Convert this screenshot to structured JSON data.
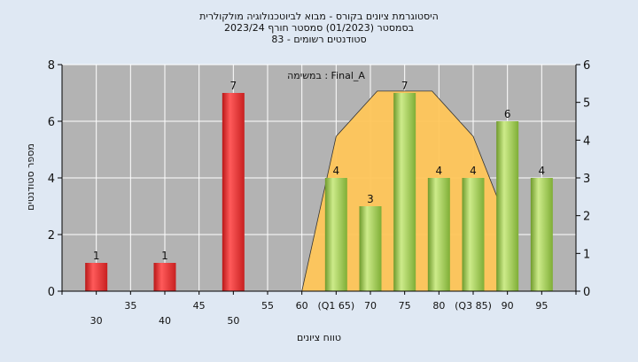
{
  "chart_data": {
    "type": "bar",
    "title_lines": [
      "היסטוגרמת ציונים בקורס - מבוא לביוטכנולוגיה מולקולרית",
      "בסמסטר  (01/2023)  סמסטר חורף 2023/24",
      "סטודנטים רשומים - 83"
    ],
    "subtitle": "במשימה : Final_A",
    "xlabel": "טווח ציונים",
    "ylabel": "מספר סטודנטים",
    "xlim": [
      25,
      100
    ],
    "ylim_left": [
      0,
      8
    ],
    "ylim_right": [
      0,
      6
    ],
    "yticks_left": [
      "0",
      "2",
      "4",
      "6",
      "8"
    ],
    "yticks_right": [
      "0",
      "1",
      "2",
      "3",
      "4",
      "5",
      "6"
    ],
    "xticks_top": [
      {
        "x": 35,
        "label": "35"
      },
      {
        "x": 45,
        "label": "45"
      },
      {
        "x": 55,
        "label": "55"
      },
      {
        "x": 60,
        "label": "60"
      },
      {
        "x": 65,
        "label": "(Q1 65)"
      },
      {
        "x": 70,
        "label": "70"
      },
      {
        "x": 75,
        "label": "75"
      },
      {
        "x": 80,
        "label": "80"
      },
      {
        "x": 85,
        "label": "(Q3 85)"
      },
      {
        "x": 90,
        "label": "90"
      },
      {
        "x": 95,
        "label": "95"
      }
    ],
    "xticks_bottom": [
      {
        "x": 30,
        "label": "30"
      },
      {
        "x": 40,
        "label": "40"
      },
      {
        "x": 50,
        "label": "50"
      }
    ],
    "bars": [
      {
        "x": 30,
        "value": 1,
        "label": "1",
        "group": "fail"
      },
      {
        "x": 40,
        "value": 1,
        "label": "1",
        "group": "fail"
      },
      {
        "x": 50,
        "value": 7,
        "label": "7",
        "group": "fail"
      },
      {
        "x": 65,
        "value": 4,
        "label": "4",
        "group": "pass"
      },
      {
        "x": 70,
        "value": 3,
        "label": "3",
        "group": "pass"
      },
      {
        "x": 75,
        "value": 7,
        "label": "7",
        "group": "pass"
      },
      {
        "x": 80,
        "value": 4,
        "label": "4",
        "group": "pass"
      },
      {
        "x": 85,
        "value": 4,
        "label": "4",
        "group": "pass"
      },
      {
        "x": 90,
        "value": 6,
        "label": "6",
        "group": "pass"
      },
      {
        "x": 95,
        "value": 4,
        "label": "4",
        "group": "pass"
      }
    ],
    "distribution_curve": [
      {
        "x": 60,
        "y": 0
      },
      {
        "x": 65,
        "y": 4.1
      },
      {
        "x": 71,
        "y": 5.3
      },
      {
        "x": 79,
        "y": 5.3
      },
      {
        "x": 85,
        "y": 4.1
      },
      {
        "x": 90,
        "y": 1.8
      }
    ],
    "colors": {
      "fail": "#e03030",
      "pass": "#9ccc55",
      "curve_fill": "#ffc65a",
      "plot_bg": "#b3b3b3",
      "grid": "#ffffff"
    },
    "grid": true
  }
}
